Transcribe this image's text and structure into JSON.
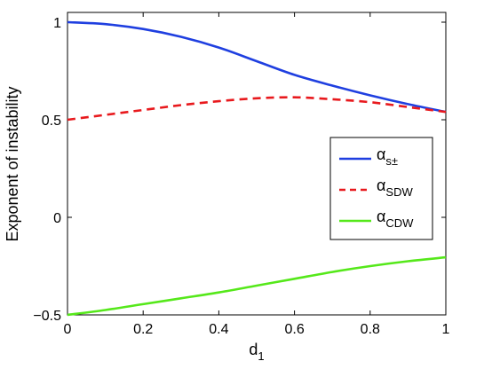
{
  "chart_data": {
    "type": "line",
    "xlabel": "d",
    "xlabel_subscript": "1",
    "ylabel": "Exponent of instability",
    "xlim": [
      0,
      1
    ],
    "ylim": [
      -0.5,
      1.05
    ],
    "x_ticks": [
      0,
      0.2,
      0.4,
      0.6,
      0.8,
      1
    ],
    "x_tick_labels": [
      "0",
      "0.2",
      "0.4",
      "0.6",
      "0.8",
      "1"
    ],
    "y_ticks": [
      -0.5,
      0,
      0.5,
      1
    ],
    "y_tick_labels": [
      "−0.5",
      "0",
      "0.5",
      "1"
    ],
    "grid": false,
    "legend_position": "right",
    "x": [
      0,
      0.1,
      0.2,
      0.3,
      0.4,
      0.5,
      0.6,
      0.7,
      0.8,
      0.9,
      1.0
    ],
    "series": [
      {
        "name": "α",
        "name_subscript": "s±",
        "color": "#1f3fe0",
        "dash": "solid",
        "values": [
          1.0,
          0.99,
          0.965,
          0.925,
          0.87,
          0.8,
          0.73,
          0.675,
          0.625,
          0.58,
          0.54
        ]
      },
      {
        "name": "α",
        "name_subscript": "SDW",
        "color": "#e8191d",
        "dash": "dashed",
        "values": [
          0.5,
          0.525,
          0.55,
          0.575,
          0.595,
          0.61,
          0.615,
          0.605,
          0.59,
          0.565,
          0.54
        ]
      },
      {
        "name": "α",
        "name_subscript": "CDW",
        "color": "#55e81a",
        "dash": "solid",
        "values": [
          -0.5,
          -0.475,
          -0.445,
          -0.415,
          -0.385,
          -0.35,
          -0.315,
          -0.28,
          -0.25,
          -0.225,
          -0.205
        ]
      }
    ]
  }
}
